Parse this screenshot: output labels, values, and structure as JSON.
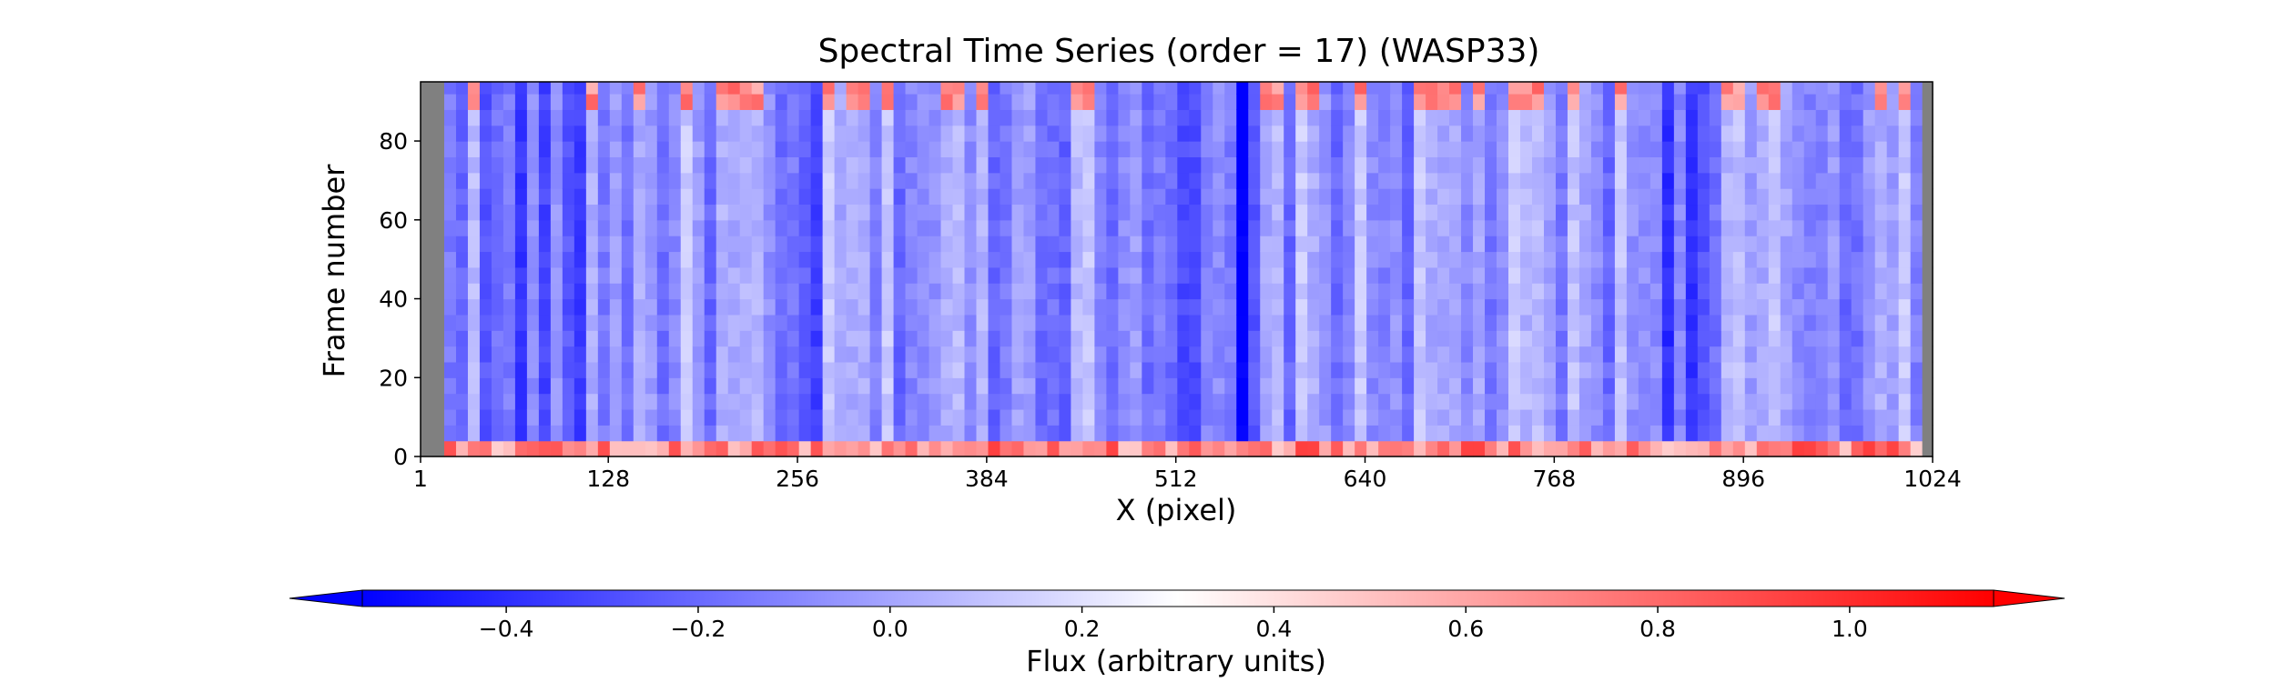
{
  "chart_data": {
    "type": "heatmap",
    "title": "Spectral Time Series (order = 17) (WASP33)",
    "xlabel": "X (pixel)",
    "ylabel": "Frame number",
    "xlim": [
      1,
      1024
    ],
    "ylim": [
      0,
      95
    ],
    "x_ticks": [
      1,
      128,
      256,
      384,
      512,
      640,
      768,
      896,
      1024
    ],
    "y_ticks": [
      0,
      20,
      40,
      60,
      80
    ],
    "masked_columns": [
      [
        1,
        10
      ],
      [
        1012,
        1024
      ]
    ],
    "colormap": "bwr",
    "colors": {
      "low": "#0000ff",
      "mid": "#ffffff",
      "high": "#ff0000",
      "masked": "#808080"
    },
    "colorbar": {
      "label": "Flux (arbitrary units)",
      "range": [
        -0.55,
        1.15
      ],
      "ticks": [
        -0.4,
        -0.2,
        0.0,
        0.2,
        0.4,
        0.6,
        0.8,
        1.0
      ],
      "tick_labels": [
        "−0.4",
        "−0.2",
        "0.0",
        "0.2",
        "0.4",
        "0.6",
        "0.8",
        "1.0"
      ],
      "extend": "both",
      "orientation": "horizontal"
    },
    "features": {
      "baseline_value": -0.05,
      "bottom_rows_value": 0.95,
      "top_rows_value": 0.55,
      "dark_bands_x": [
        [
          40,
          110
        ],
        [
          230,
          270
        ],
        [
          510,
          560
        ],
        [
          840,
          880
        ]
      ],
      "strong_column_x": 555
    }
  }
}
